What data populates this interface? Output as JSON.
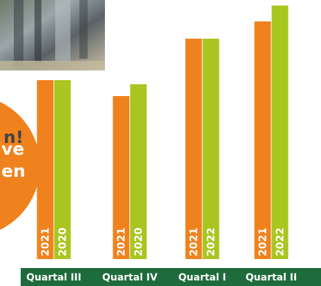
{
  "chart_data": {
    "type": "bar",
    "categories": [
      "Quartal III",
      "Quartal IV",
      "Quartal I",
      "Quartal II"
    ],
    "series": [
      {
        "color": "#f0821e",
        "values": [
          259,
          236,
          319,
          344
        ],
        "bar_labels": [
          "2021",
          "2021",
          "2021",
          "2021"
        ]
      },
      {
        "color": "#a9c51f",
        "values": [
          259,
          253,
          319,
          367
        ],
        "bar_labels": [
          "2020",
          "2020",
          "2022",
          "2022"
        ]
      }
    ],
    "ylim": [
      0,
      367
    ]
  },
  "badge": {
    "lines": [
      "n!",
      "ve",
      "en"
    ]
  }
}
